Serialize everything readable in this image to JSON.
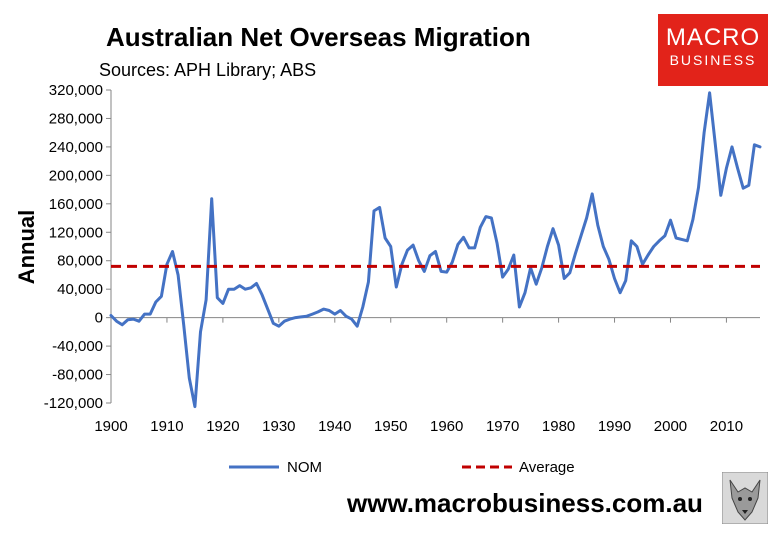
{
  "header": {
    "title": "Australian Net Overseas Migration",
    "subtitle": "Sources: APH Library; ABS"
  },
  "logo": {
    "line1": "MACRO",
    "line2": "BUSINESS"
  },
  "footer": {
    "url": "www.macrobusiness.com.au"
  },
  "colors": {
    "nom": "#4472c4",
    "average": "#c00000",
    "logo_bg": "#e2231a"
  },
  "chart_data": {
    "type": "line",
    "title": "Australian Net Overseas Migration",
    "subtitle": "Sources: APH Library; ABS",
    "xlabel": "",
    "ylabel": "Annual",
    "xlim": [
      1900,
      2016
    ],
    "ylim": [
      -120000,
      320000
    ],
    "x_ticks": [
      1900,
      1910,
      1920,
      1930,
      1940,
      1950,
      1960,
      1970,
      1980,
      1990,
      2000,
      2010
    ],
    "y_ticks": [
      320000,
      280000,
      240000,
      200000,
      160000,
      120000,
      80000,
      40000,
      0,
      -40000,
      -80000,
      -120000
    ],
    "y_tick_labels": [
      "320,000",
      "280,000",
      "240,000",
      "200,000",
      "160,000",
      "120,000",
      "80,000",
      "40,000",
      "0",
      "-40,000",
      "-80,000",
      "-120,000"
    ],
    "grid": false,
    "legend_position": "bottom",
    "series": [
      {
        "name": "NOM",
        "style": "solid",
        "color": "#4472c4",
        "x": [
          1900,
          1901,
          1902,
          1903,
          1904,
          1905,
          1906,
          1907,
          1908,
          1909,
          1910,
          1911,
          1912,
          1913,
          1914,
          1915,
          1916,
          1917,
          1918,
          1919,
          1920,
          1921,
          1922,
          1923,
          1924,
          1925,
          1926,
          1927,
          1928,
          1929,
          1930,
          1931,
          1932,
          1933,
          1934,
          1935,
          1936,
          1937,
          1938,
          1939,
          1940,
          1941,
          1942,
          1943,
          1944,
          1945,
          1946,
          1947,
          1948,
          1949,
          1950,
          1951,
          1952,
          1953,
          1954,
          1955,
          1956,
          1957,
          1958,
          1959,
          1960,
          1961,
          1962,
          1963,
          1964,
          1965,
          1966,
          1967,
          1968,
          1969,
          1970,
          1971,
          1972,
          1973,
          1974,
          1975,
          1976,
          1977,
          1978,
          1979,
          1980,
          1981,
          1982,
          1983,
          1984,
          1985,
          1986,
          1987,
          1988,
          1989,
          1990,
          1991,
          1992,
          1993,
          1994,
          1995,
          1996,
          1997,
          1998,
          1999,
          2000,
          2001,
          2002,
          2003,
          2004,
          2005,
          2006,
          2007,
          2008,
          2009,
          2010,
          2011,
          2012,
          2013,
          2014,
          2015,
          2016
        ],
        "values": [
          3000,
          -5000,
          -10000,
          -3000,
          -2000,
          -5000,
          5000,
          5000,
          22000,
          30000,
          75000,
          93000,
          60000,
          -10000,
          -85000,
          -125000,
          -20000,
          25000,
          167000,
          28000,
          20000,
          40000,
          40000,
          45000,
          40000,
          42000,
          48000,
          32000,
          12000,
          -8000,
          -12000,
          -5000,
          -2000,
          0,
          1000,
          2000,
          5000,
          8000,
          12000,
          10000,
          5000,
          10000,
          2000,
          -2000,
          -12000,
          15000,
          50000,
          150000,
          155000,
          112000,
          100000,
          43000,
          75000,
          95000,
          102000,
          80000,
          65000,
          87000,
          93000,
          65000,
          64000,
          78000,
          103000,
          113000,
          98000,
          98000,
          127000,
          142000,
          140000,
          105000,
          57000,
          68000,
          88000,
          15000,
          35000,
          70000,
          47000,
          70000,
          100000,
          125000,
          102000,
          55000,
          63000,
          90000,
          115000,
          140000,
          174000,
          130000,
          100000,
          82000,
          55000,
          35000,
          52000,
          108000,
          100000,
          75000,
          88000,
          100000,
          108000,
          115000,
          137000,
          112000,
          110000,
          108000,
          138000,
          183000,
          260000,
          316000,
          245000,
          172000,
          210000,
          240000,
          210000,
          182000,
          186000,
          243000,
          240000
        ]
      },
      {
        "name": "Average",
        "style": "dashed",
        "color": "#c00000",
        "x": [
          1900,
          2016
        ],
        "values": [
          72000,
          72000
        ]
      }
    ]
  }
}
